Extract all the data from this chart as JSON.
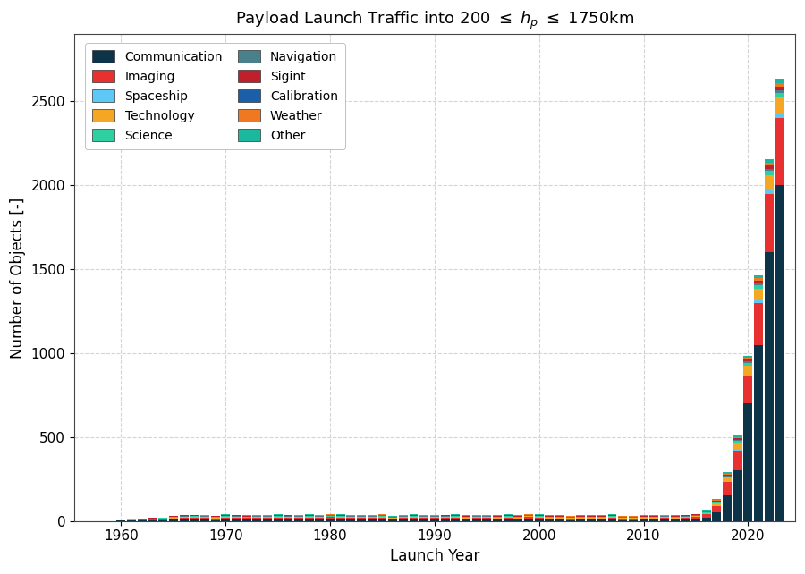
{
  "title": "Payload Launch Traffic into 200 $\\leq$ $h_p$ $\\leq$ 1750km",
  "xlabel": "Launch Year",
  "ylabel": "Number of Objects [-]",
  "ylim": [
    0,
    2900
  ],
  "yticks": [
    0,
    500,
    1000,
    1500,
    2000,
    2500
  ],
  "categories": [
    "Communication",
    "Imaging",
    "Spaceship",
    "Technology",
    "Science",
    "Navigation",
    "Sigint",
    "Calibration",
    "Weather",
    "Other"
  ],
  "colors": [
    "#0d3349",
    "#e83030",
    "#5bc8f5",
    "#f5a623",
    "#2ecfa0",
    "#4a7f8c",
    "#c0202b",
    "#1a5fa8",
    "#f07820",
    "#1ab89c"
  ],
  "years": [
    1957,
    1958,
    1959,
    1960,
    1961,
    1962,
    1963,
    1964,
    1965,
    1966,
    1967,
    1968,
    1969,
    1970,
    1971,
    1972,
    1973,
    1974,
    1975,
    1976,
    1977,
    1978,
    1979,
    1980,
    1981,
    1982,
    1983,
    1984,
    1985,
    1986,
    1987,
    1988,
    1989,
    1990,
    1991,
    1992,
    1993,
    1994,
    1995,
    1996,
    1997,
    1998,
    1999,
    2000,
    2001,
    2002,
    2003,
    2004,
    2005,
    2006,
    2007,
    2008,
    2009,
    2010,
    2011,
    2012,
    2013,
    2014,
    2015,
    2016,
    2017,
    2018,
    2019,
    2020,
    2021,
    2022,
    2023
  ],
  "data": {
    "Communication": [
      0,
      0,
      0,
      1,
      2,
      3,
      4,
      5,
      6,
      7,
      8,
      6,
      5,
      8,
      7,
      7,
      8,
      7,
      8,
      7,
      7,
      8,
      7,
      8,
      8,
      7,
      7,
      8,
      9,
      6,
      7,
      8,
      7,
      7,
      7,
      8,
      6,
      7,
      7,
      6,
      8,
      6,
      9,
      8,
      6,
      6,
      5,
      6,
      6,
      6,
      8,
      5,
      5,
      6,
      6,
      7,
      6,
      7,
      8,
      18,
      50,
      150,
      300,
      700,
      1050,
      1600,
      2000
    ],
    "Imaging": [
      0,
      0,
      0,
      0,
      2,
      4,
      5,
      7,
      10,
      12,
      12,
      12,
      10,
      12,
      12,
      10,
      10,
      10,
      12,
      12,
      10,
      12,
      10,
      14,
      12,
      10,
      10,
      10,
      12,
      8,
      10,
      12,
      10,
      10,
      12,
      12,
      10,
      10,
      10,
      10,
      12,
      10,
      14,
      12,
      10,
      10,
      8,
      10,
      10,
      10,
      12,
      8,
      8,
      10,
      10,
      10,
      10,
      12,
      14,
      20,
      40,
      80,
      120,
      160,
      250,
      350,
      400
    ],
    "Spaceship": [
      0,
      0,
      0,
      0,
      0,
      0,
      0,
      0,
      0,
      0,
      0,
      0,
      0,
      0,
      0,
      0,
      0,
      0,
      0,
      0,
      0,
      0,
      0,
      0,
      0,
      0,
      0,
      0,
      0,
      0,
      0,
      0,
      0,
      0,
      0,
      0,
      0,
      0,
      0,
      0,
      0,
      0,
      0,
      0,
      0,
      0,
      0,
      0,
      0,
      0,
      0,
      0,
      0,
      0,
      0,
      0,
      0,
      0,
      0,
      0,
      0,
      2,
      5,
      8,
      12,
      18,
      22
    ],
    "Technology": [
      0,
      0,
      0,
      0,
      2,
      2,
      3,
      3,
      4,
      5,
      5,
      5,
      4,
      5,
      5,
      4,
      5,
      5,
      5,
      5,
      5,
      5,
      5,
      5,
      5,
      5,
      5,
      5,
      6,
      4,
      5,
      5,
      5,
      5,
      5,
      5,
      4,
      5,
      5,
      5,
      5,
      5,
      5,
      5,
      4,
      5,
      4,
      5,
      5,
      5,
      5,
      4,
      4,
      5,
      5,
      5,
      5,
      5,
      6,
      8,
      15,
      25,
      40,
      55,
      70,
      90,
      100
    ],
    "Science": [
      0,
      0,
      0,
      0,
      1,
      2,
      2,
      2,
      3,
      3,
      3,
      3,
      3,
      3,
      3,
      3,
      3,
      3,
      3,
      3,
      3,
      3,
      3,
      3,
      3,
      3,
      3,
      3,
      3,
      2,
      3,
      3,
      3,
      3,
      3,
      3,
      3,
      3,
      3,
      3,
      3,
      3,
      3,
      3,
      3,
      3,
      3,
      3,
      3,
      3,
      3,
      3,
      3,
      3,
      3,
      3,
      3,
      3,
      4,
      5,
      7,
      8,
      12,
      18,
      22,
      28,
      30
    ],
    "Navigation": [
      0,
      0,
      0,
      0,
      0,
      1,
      2,
      2,
      3,
      3,
      3,
      3,
      3,
      3,
      3,
      3,
      3,
      3,
      3,
      3,
      3,
      3,
      3,
      3,
      3,
      3,
      3,
      3,
      3,
      2,
      3,
      3,
      3,
      3,
      3,
      3,
      3,
      3,
      3,
      3,
      3,
      3,
      3,
      3,
      3,
      3,
      3,
      3,
      3,
      3,
      3,
      3,
      3,
      3,
      3,
      3,
      3,
      3,
      3,
      4,
      5,
      6,
      8,
      10,
      12,
      14,
      16
    ],
    "Sigint": [
      0,
      0,
      0,
      0,
      0,
      1,
      2,
      2,
      3,
      3,
      3,
      3,
      3,
      3,
      3,
      3,
      3,
      3,
      3,
      3,
      3,
      3,
      3,
      3,
      3,
      3,
      3,
      3,
      3,
      2,
      3,
      3,
      3,
      3,
      3,
      3,
      3,
      3,
      3,
      3,
      3,
      3,
      3,
      3,
      3,
      3,
      3,
      3,
      3,
      3,
      3,
      3,
      3,
      3,
      3,
      3,
      3,
      3,
      3,
      4,
      5,
      6,
      8,
      10,
      12,
      15,
      18
    ],
    "Calibration": [
      0,
      0,
      0,
      0,
      0,
      0,
      0,
      0,
      0,
      0,
      0,
      0,
      0,
      0,
      0,
      0,
      0,
      0,
      0,
      0,
      0,
      0,
      0,
      0,
      0,
      0,
      0,
      0,
      0,
      0,
      0,
      0,
      0,
      0,
      0,
      0,
      0,
      0,
      0,
      0,
      0,
      0,
      0,
      0,
      0,
      0,
      0,
      0,
      0,
      0,
      0,
      0,
      0,
      0,
      0,
      0,
      0,
      0,
      0,
      0,
      0,
      0,
      0,
      1,
      2,
      2,
      3
    ],
    "Weather": [
      0,
      0,
      0,
      0,
      0,
      0,
      0,
      0,
      1,
      1,
      1,
      1,
      1,
      2,
      2,
      2,
      2,
      2,
      2,
      2,
      2,
      2,
      2,
      2,
      2,
      2,
      2,
      2,
      2,
      2,
      2,
      2,
      2,
      2,
      2,
      2,
      2,
      2,
      2,
      2,
      2,
      2,
      2,
      2,
      2,
      2,
      2,
      2,
      2,
      2,
      2,
      2,
      2,
      2,
      2,
      2,
      2,
      2,
      2,
      3,
      4,
      6,
      8,
      12,
      16,
      20,
      22
    ],
    "Other": [
      0,
      0,
      0,
      0,
      0,
      0,
      0,
      0,
      1,
      1,
      1,
      1,
      1,
      2,
      2,
      2,
      2,
      2,
      2,
      2,
      2,
      2,
      2,
      2,
      2,
      2,
      2,
      2,
      2,
      2,
      2,
      2,
      2,
      2,
      2,
      2,
      2,
      2,
      2,
      2,
      2,
      2,
      2,
      2,
      2,
      2,
      2,
      2,
      2,
      2,
      2,
      2,
      2,
      2,
      2,
      2,
      2,
      2,
      2,
      3,
      5,
      6,
      8,
      12,
      16,
      20,
      24
    ]
  },
  "background_color": "#ffffff",
  "grid_color": "#aaaaaa"
}
